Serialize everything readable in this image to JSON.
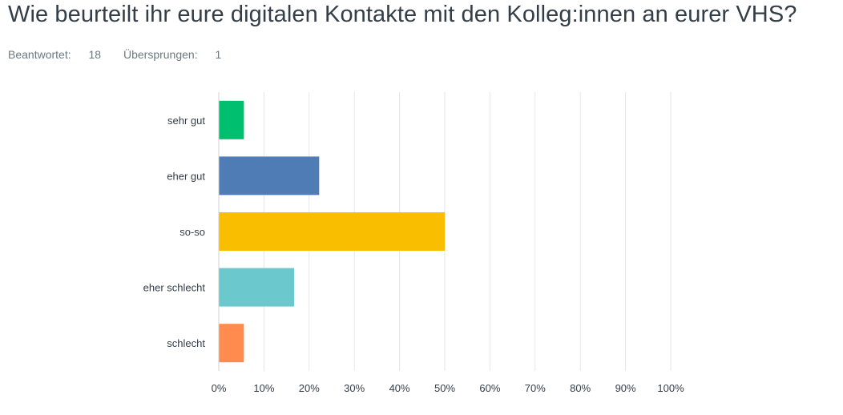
{
  "question": {
    "title": "Wie beurteilt ihr eure digitalen Kontakte mit den Kolleg:innen an eurer VHS?",
    "answered_label": "Beantwortet:",
    "answered_count": "18",
    "skipped_label": "Übersprungen:",
    "skipped_count": "1"
  },
  "chart_data": {
    "type": "bar",
    "orientation": "horizontal",
    "categories": [
      "sehr gut",
      "eher gut",
      "so-so",
      "eher schlecht",
      "schlecht"
    ],
    "values": [
      5.56,
      22.22,
      50.0,
      16.67,
      5.56
    ],
    "colors": [
      "#00bf6f",
      "#507cb6",
      "#f9be00",
      "#6bc8cd",
      "#ff8b4f"
    ],
    "x_ticks": [
      "0%",
      "10%",
      "20%",
      "30%",
      "40%",
      "50%",
      "60%",
      "70%",
      "80%",
      "90%",
      "100%"
    ],
    "xlim": [
      0,
      100
    ],
    "grid": true
  }
}
